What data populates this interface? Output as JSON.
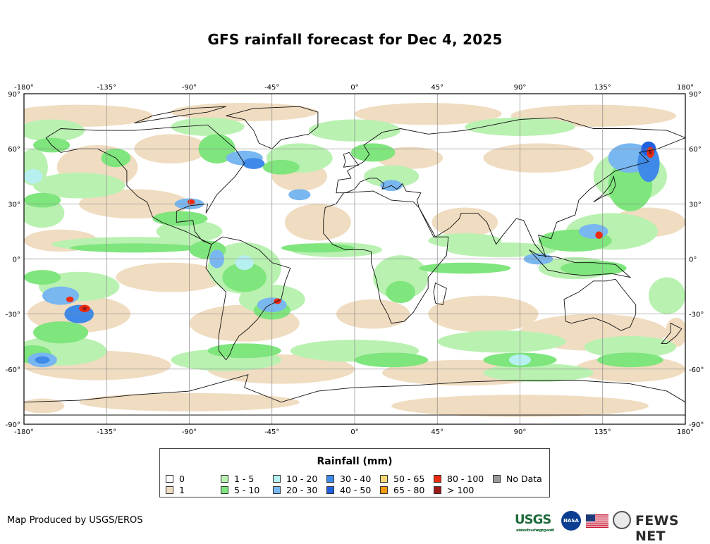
{
  "title": "GFS rainfall forecast for Dec 4, 2025",
  "map": {
    "lon_ticks": [
      "-180°",
      "-135°",
      "-90°",
      "-45°",
      "0°",
      "45°",
      "90°",
      "135°",
      "180°"
    ],
    "lat_ticks": [
      "90°",
      "60°",
      "30°",
      "0°",
      "-30°",
      "-60°",
      "-90°"
    ],
    "projection": "equirectangular",
    "grid": true,
    "colors": {
      "ocean_none": "#ffffff",
      "rain_1": "#f0dcc0",
      "rain_1_5": "#b9f1b1",
      "rain_5_10": "#7fe57d",
      "rain_10_20": "#b7f0f0",
      "rain_20_30": "#79b7f0",
      "rain_30_40": "#3f8ae8",
      "rain_40_50": "#1f5fe0",
      "rain_80_100": "#ee2b10",
      "rain_gt_100": "#9b1a1a"
    }
  },
  "legend": {
    "title": "Rainfall (mm)",
    "items": [
      {
        "label": "0",
        "color": "#ffffff"
      },
      {
        "label": "1",
        "color": "#f0dcc0"
      },
      {
        "label": "1 - 5",
        "color": "#b9f1b1"
      },
      {
        "label": "5 - 10",
        "color": "#7fe57d"
      },
      {
        "label": "10 - 20",
        "color": "#b7f0f0"
      },
      {
        "label": "20 - 30",
        "color": "#79b7f0"
      },
      {
        "label": "30 - 40",
        "color": "#3f8ae8"
      },
      {
        "label": "40 - 50",
        "color": "#1f5fe0"
      },
      {
        "label": "50 - 65",
        "color": "#f6d878"
      },
      {
        "label": "65 - 80",
        "color": "#f39a10"
      },
      {
        "label": "80 - 100",
        "color": "#ee2b10"
      },
      {
        "label": "> 100",
        "color": "#9b1a1a"
      },
      {
        "label": "No Data",
        "color": "#999999"
      }
    ]
  },
  "footer": {
    "credit": "Map Produced by USGS/EROS",
    "logos": {
      "usgs": "USGS",
      "usgs_tagline": "science for a changing world",
      "nasa": "NASA",
      "fews": "FEWS NET"
    }
  }
}
